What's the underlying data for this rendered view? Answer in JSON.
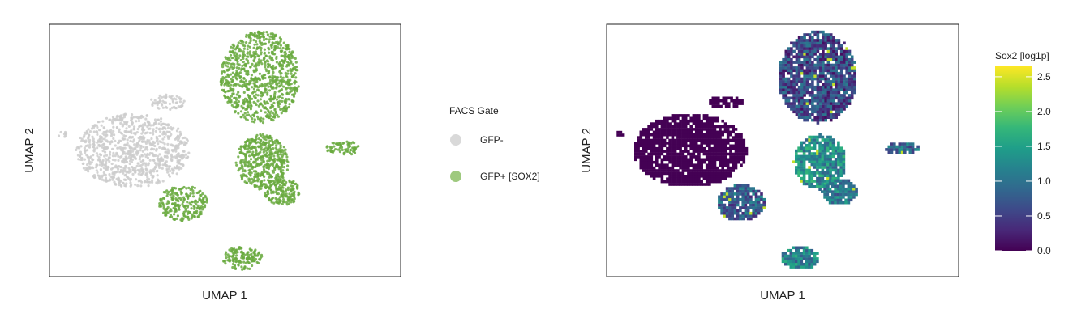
{
  "colors": {
    "gfp_neg": "#cccccc",
    "gfp_pos": "#6aaa40",
    "gfp_pos_legend": "#9ec97e",
    "gfp_neg_legend": "#d9d9d9",
    "viridis": [
      "#440154",
      "#482878",
      "#3e4989",
      "#31688e",
      "#26828e",
      "#1f9e89",
      "#35b779",
      "#6ece58",
      "#b5de2b",
      "#fde725"
    ]
  },
  "chart_data": [
    {
      "type": "scatter",
      "xlabel": "UMAP 1",
      "ylabel": "UMAP 2",
      "legend": {
        "title": "FACS Gate",
        "placement": "right",
        "entries": [
          "GFP-",
          "GFP+ [SOX2]"
        ]
      },
      "clusters": [
        {
          "group": "GFP-",
          "cx": -4.2,
          "cy": 0.5,
          "rx": 2.6,
          "ry": 1.6,
          "n": 900
        },
        {
          "group": "GFP-",
          "cx": -2.6,
          "cy": 2.6,
          "rx": 0.8,
          "ry": 0.35,
          "n": 60
        },
        {
          "group": "GFP-",
          "cx": -7.4,
          "cy": 1.2,
          "rx": 0.2,
          "ry": 0.15,
          "n": 8
        },
        {
          "group": "GFP+ [SOX2]",
          "cx": 1.6,
          "cy": 3.7,
          "rx": 1.8,
          "ry": 2.0,
          "n": 850
        },
        {
          "group": "GFP+ [SOX2]",
          "cx": 1.7,
          "cy": 0.0,
          "rx": 1.2,
          "ry": 1.2,
          "n": 450
        },
        {
          "group": "GFP+ [SOX2]",
          "cx": 2.6,
          "cy": -1.3,
          "rx": 0.8,
          "ry": 0.6,
          "n": 160
        },
        {
          "group": "GFP+ [SOX2]",
          "cx": -1.9,
          "cy": -1.8,
          "rx": 1.1,
          "ry": 0.8,
          "n": 220
        },
        {
          "group": "GFP+ [SOX2]",
          "cx": 0.8,
          "cy": -4.2,
          "rx": 0.9,
          "ry": 0.5,
          "n": 140
        },
        {
          "group": "GFP+ [SOX2]",
          "cx": 5.4,
          "cy": 0.6,
          "rx": 0.8,
          "ry": 0.3,
          "n": 70
        }
      ],
      "xlim": [
        -8,
        8
      ],
      "ylim": [
        -5,
        6
      ],
      "grid": false
    },
    {
      "type": "heatmap",
      "xlabel": "UMAP 1",
      "ylabel": "UMAP 2",
      "colorbar": {
        "title": "Sox2 [log1p]",
        "ticks": [
          0.0,
          0.5,
          1.0,
          1.5,
          2.0,
          2.5
        ],
        "tick_labels": [
          "0.0",
          "0.5",
          "1.0",
          "1.5",
          "2.0",
          "2.5"
        ],
        "range": [
          0,
          2.65
        ]
      },
      "regions": [
        {
          "cx": -4.2,
          "cy": 0.5,
          "rx": 2.6,
          "ry": 1.6,
          "mean": 0.0
        },
        {
          "cx": -2.6,
          "cy": 2.6,
          "rx": 0.8,
          "ry": 0.3,
          "mean": 0.0
        },
        {
          "cx": -7.4,
          "cy": 1.2,
          "rx": 0.2,
          "ry": 0.15,
          "mean": 0.0
        },
        {
          "cx": 1.6,
          "cy": 3.7,
          "rx": 1.8,
          "ry": 2.0,
          "mean": 0.6
        },
        {
          "cx": 1.7,
          "cy": 0.0,
          "rx": 1.2,
          "ry": 1.2,
          "mean": 1.3
        },
        {
          "cx": 2.6,
          "cy": -1.3,
          "rx": 0.8,
          "ry": 0.6,
          "mean": 1.1
        },
        {
          "cx": -1.9,
          "cy": -1.8,
          "rx": 1.1,
          "ry": 0.8,
          "mean": 0.8
        },
        {
          "cx": 0.8,
          "cy": -4.2,
          "rx": 0.9,
          "ry": 0.5,
          "mean": 1.2
        },
        {
          "cx": 5.4,
          "cy": 0.6,
          "rx": 0.8,
          "ry": 0.3,
          "mean": 0.9
        }
      ],
      "xlim": [
        -8,
        8
      ],
      "ylim": [
        -5,
        6
      ],
      "grid": false
    }
  ]
}
